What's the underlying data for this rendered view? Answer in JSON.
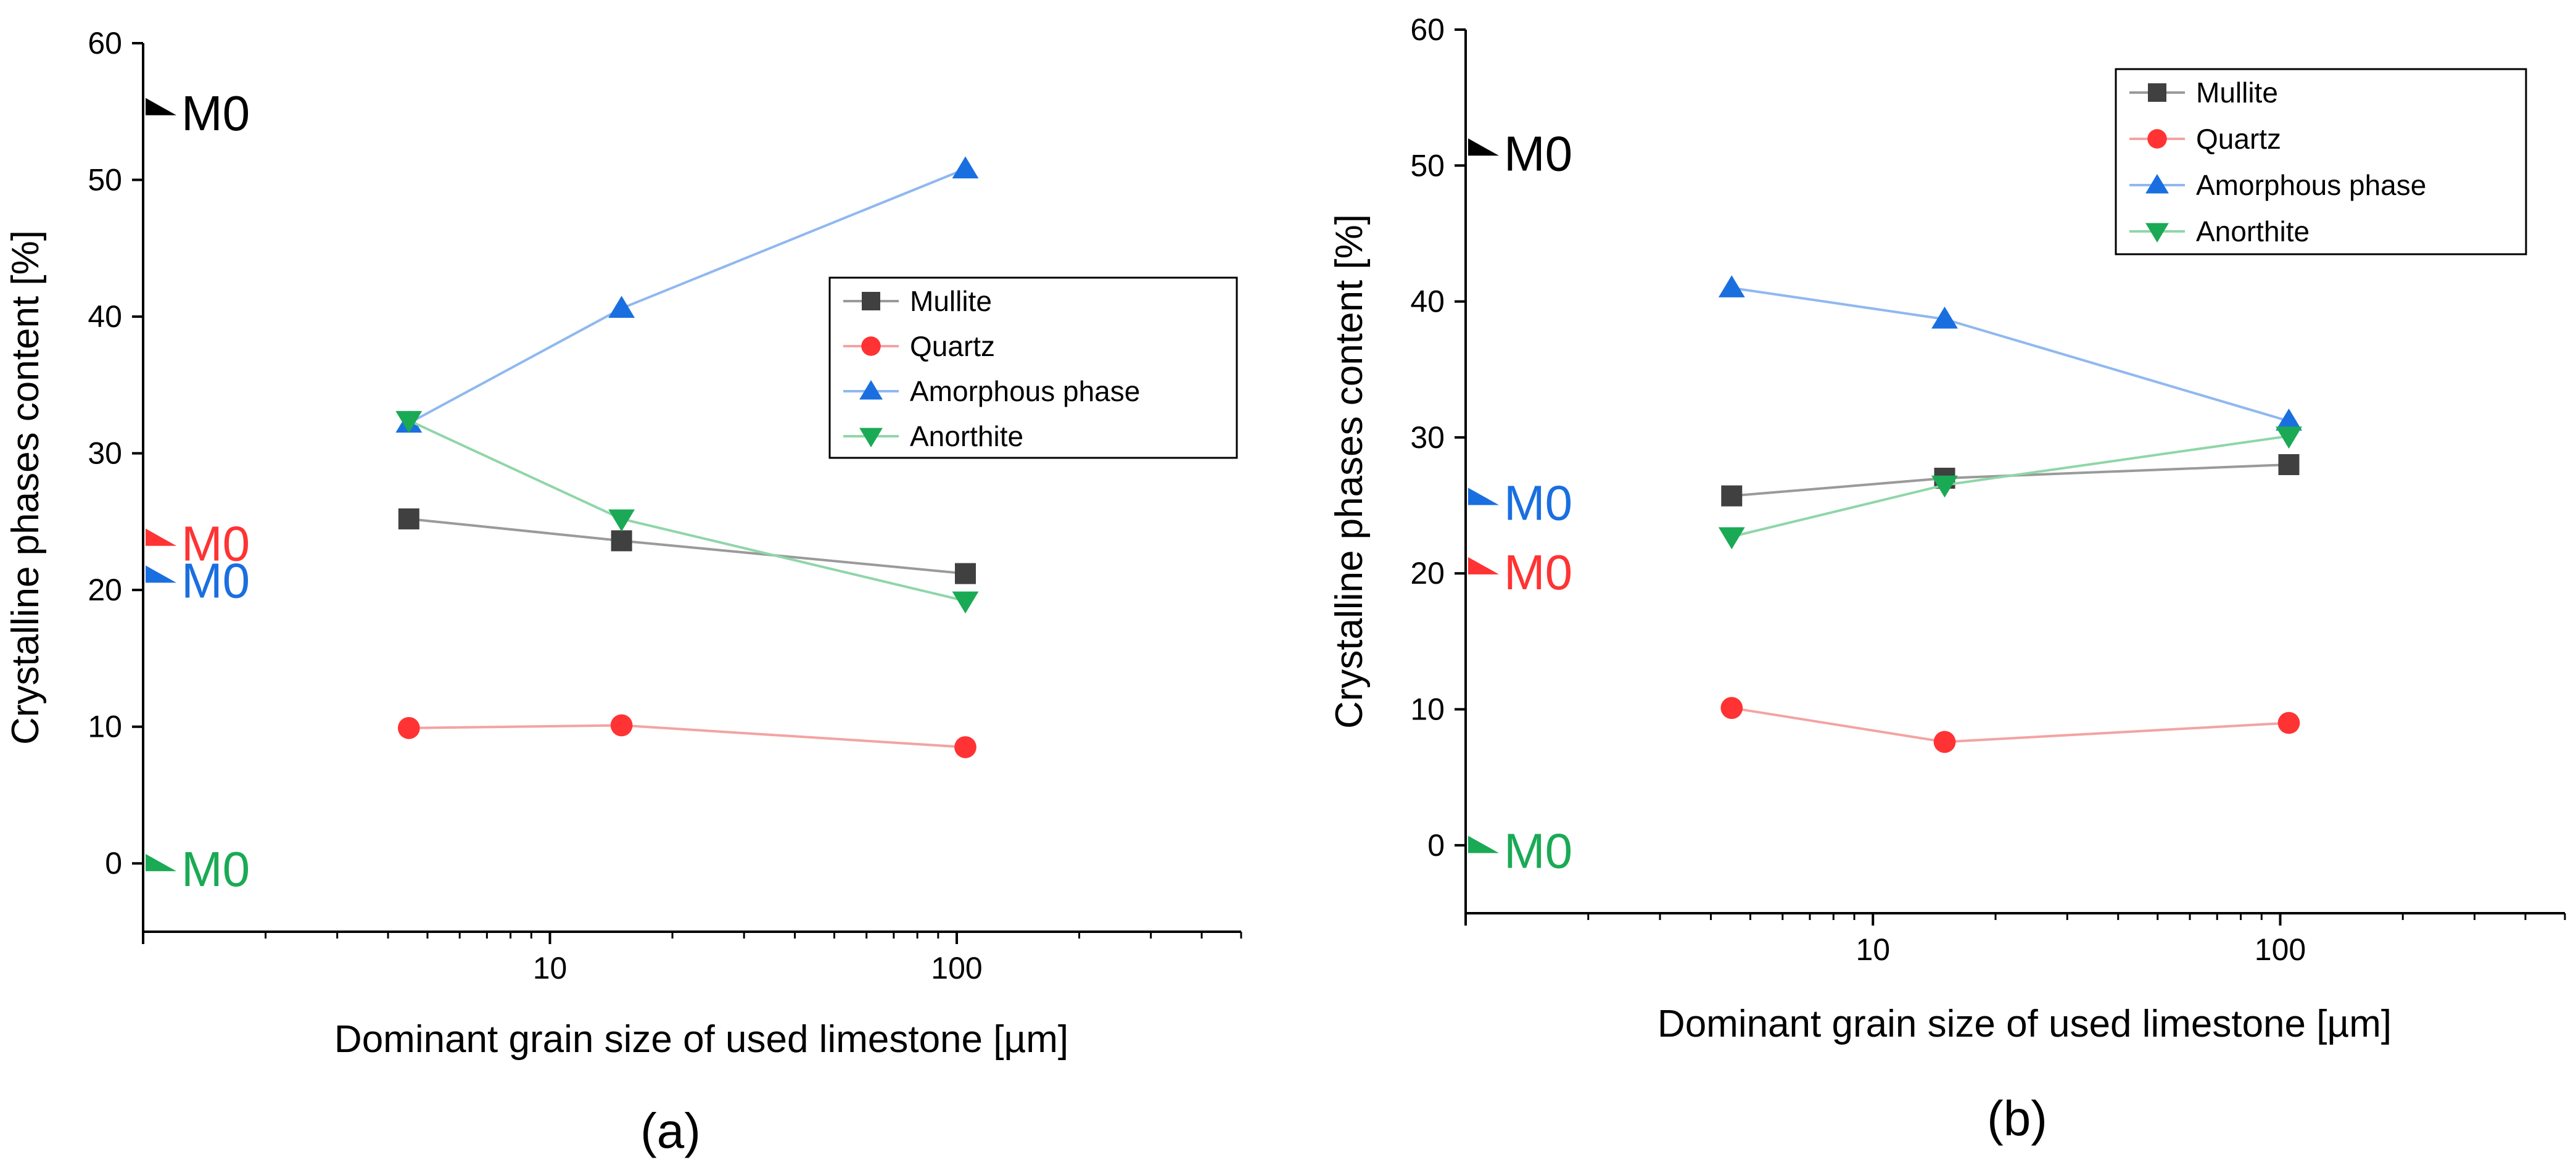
{
  "chart_data": [
    {
      "type": "line",
      "panel_label": "(a)",
      "xscale": "log",
      "xlim": [
        1,
        500
      ],
      "ylim": [
        -5,
        60
      ],
      "xticks": [
        10,
        100
      ],
      "xtick_labels": [
        "10",
        "100"
      ],
      "yticks": [
        0,
        10,
        20,
        30,
        40,
        50,
        60
      ],
      "ytick_labels": [
        "0",
        "10",
        "20",
        "30",
        "40",
        "50",
        "60"
      ],
      "xlabel": "Dominant grain size of used limestone [µm]",
      "ylabel": "Crystalline phases content [%]",
      "legend_position": "center-right",
      "x": [
        4.5,
        15,
        105
      ],
      "series": [
        {
          "name": "Mullite",
          "marker": "square",
          "marker_color": "#404040",
          "line_color": "#9a9a9a",
          "values": [
            25.2,
            23.6,
            21.2
          ]
        },
        {
          "name": "Quartz",
          "marker": "circle",
          "marker_color": "#ff3333",
          "line_color": "#f4a3a3",
          "values": [
            9.9,
            10.1,
            8.5
          ]
        },
        {
          "name": "Amorphous phase",
          "marker": "triangle-up",
          "marker_color": "#1a6fe0",
          "line_color": "#8fb8f0",
          "values": [
            32.2,
            40.6,
            50.8
          ]
        },
        {
          "name": "Anorthite",
          "marker": "triangle-down",
          "marker_color": "#1aaa55",
          "line_color": "#8fd6a8",
          "values": [
            32.4,
            25.2,
            19.2
          ]
        }
      ],
      "annotations": [
        {
          "text": "M0",
          "series": "Mullite",
          "value": 55,
          "color": "#000000"
        },
        {
          "text": "M0",
          "series": "Quartz",
          "value": 23.5,
          "color": "#ff3333"
        },
        {
          "text": "M0",
          "series": "Amorphous phase",
          "value": 20.8,
          "color": "#1a6fe0"
        },
        {
          "text": "M0",
          "series": "Anorthite",
          "value": -0.3,
          "color": "#1aaa55"
        }
      ]
    },
    {
      "type": "line",
      "panel_label": "(b)",
      "xscale": "log",
      "xlim": [
        1,
        500
      ],
      "ylim": [
        -5,
        60
      ],
      "xticks": [
        10,
        100
      ],
      "xtick_labels": [
        "10",
        "100"
      ],
      "yticks": [
        0,
        10,
        20,
        30,
        40,
        50,
        60
      ],
      "ytick_labels": [
        "0",
        "10",
        "20",
        "30",
        "40",
        "50",
        "60"
      ],
      "xlabel": "Dominant grain size of used limestone [µm]",
      "ylabel": "Crystalline phases content [%]",
      "legend_position": "top-right",
      "x": [
        4.5,
        15,
        105
      ],
      "series": [
        {
          "name": "Mullite",
          "marker": "square",
          "marker_color": "#404040",
          "line_color": "#9a9a9a",
          "values": [
            25.7,
            27.0,
            28.0
          ]
        },
        {
          "name": "Quartz",
          "marker": "circle",
          "marker_color": "#ff3333",
          "line_color": "#f4a3a3",
          "values": [
            10.1,
            7.6,
            9.0
          ]
        },
        {
          "name": "Amorphous phase",
          "marker": "triangle-up",
          "marker_color": "#1a6fe0",
          "line_color": "#8fb8f0",
          "values": [
            41.0,
            38.7,
            31.2
          ]
        },
        {
          "name": "Anorthite",
          "marker": "triangle-down",
          "marker_color": "#1aaa55",
          "line_color": "#8fd6a8",
          "values": [
            22.7,
            26.5,
            30.1
          ]
        }
      ],
      "annotations": [
        {
          "text": "M0",
          "series": "Mullite",
          "value": 51,
          "color": "#000000"
        },
        {
          "text": "M0",
          "series": "Amorphous phase",
          "value": 25.3,
          "color": "#1a6fe0"
        },
        {
          "text": "M0",
          "series": "Quartz",
          "value": 20.2,
          "color": "#ff3333"
        },
        {
          "text": "M0",
          "series": "Anorthite",
          "value": -0.3,
          "color": "#1aaa55"
        }
      ]
    }
  ]
}
